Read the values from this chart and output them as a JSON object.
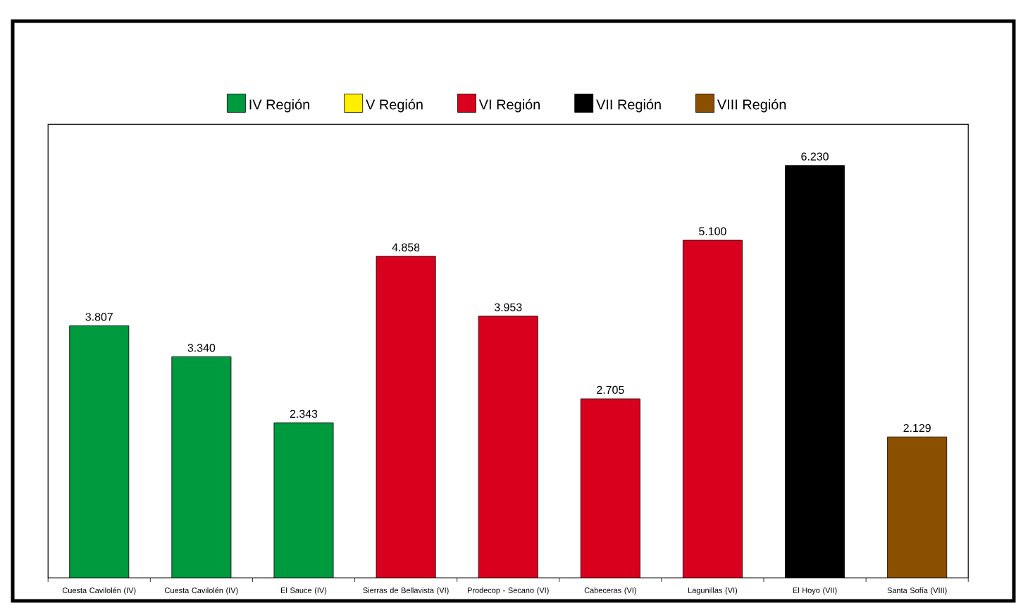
{
  "chart_data": {
    "type": "bar",
    "categories": [
      "Cuesta Cavilolén (IV)",
      "Cuesta Cavilolén (IV)",
      "El Sauce (IV)",
      "Sierras de Bellavista (VI)",
      "Prodecop - Secano (VI)",
      "Cabeceras (VI)",
      "Lagunillas (VI)",
      "El Hoyo (VII)",
      "Santa Sofía (VIII)"
    ],
    "series": [
      {
        "name": "IV Región",
        "color": "#009a3e",
        "values": [
          3.807,
          3.34,
          2.343,
          null,
          null,
          null,
          null,
          null,
          null
        ],
        "value_labels": [
          "3.807",
          "3.340",
          "2.343",
          null,
          null,
          null,
          null,
          null,
          null
        ]
      },
      {
        "name": "V Región",
        "color": "#ffee00",
        "values": [
          null,
          null,
          null,
          null,
          null,
          null,
          null,
          null,
          null
        ],
        "value_labels": [
          null,
          null,
          null,
          null,
          null,
          null,
          null,
          null,
          null
        ]
      },
      {
        "name": "VI Región",
        "color": "#d9001e",
        "values": [
          null,
          null,
          null,
          4.858,
          3.953,
          2.705,
          5.1,
          null,
          null
        ],
        "value_labels": [
          null,
          null,
          null,
          "4.858",
          "3.953",
          "2.705",
          "5.100",
          null,
          null
        ]
      },
      {
        "name": "VII Región",
        "color": "#000000",
        "values": [
          null,
          null,
          null,
          null,
          null,
          null,
          null,
          6.23,
          null
        ],
        "value_labels": [
          null,
          null,
          null,
          null,
          null,
          null,
          null,
          "6.230",
          null
        ]
      },
      {
        "name": "VIII Región",
        "color": "#8b4f00",
        "values": [
          null,
          null,
          null,
          null,
          null,
          null,
          null,
          null,
          2.129
        ],
        "value_labels": [
          null,
          null,
          null,
          null,
          null,
          null,
          null,
          null,
          "2.129"
        ]
      }
    ],
    "legend": "top",
    "tick_labels": "x"
  }
}
